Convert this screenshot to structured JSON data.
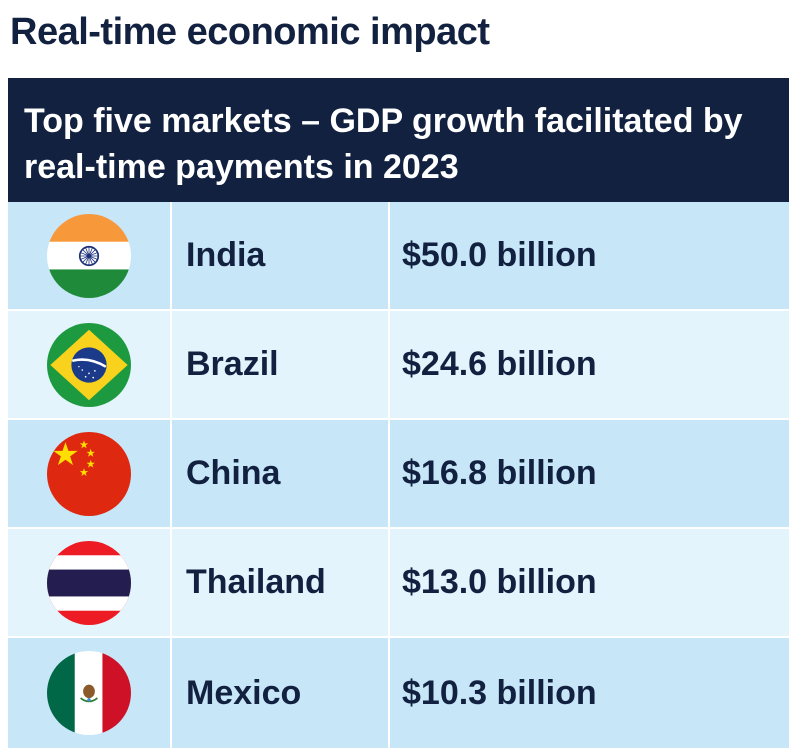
{
  "page_title": "Real-time economic impact",
  "chart_data": {
    "type": "table",
    "title": "Top five markets – GDP growth facilitated by real-time payments in 2023",
    "unit": "billion USD",
    "rows": [
      {
        "country": "India",
        "value": 50.0,
        "value_label": "$50.0 billion",
        "flag_icon": "india-flag-icon"
      },
      {
        "country": "Brazil",
        "value": 24.6,
        "value_label": "$24.6 billion",
        "flag_icon": "brazil-flag-icon"
      },
      {
        "country": "China",
        "value": 16.8,
        "value_label": "$16.8 billion",
        "flag_icon": "china-flag-icon"
      },
      {
        "country": "Thailand",
        "value": 13.0,
        "value_label": "$13.0 billion",
        "flag_icon": "thailand-flag-icon"
      },
      {
        "country": "Mexico",
        "value": 10.3,
        "value_label": "$10.3 billion",
        "flag_icon": "mexico-flag-icon"
      }
    ]
  },
  "colors": {
    "header_bg": "#12213f",
    "row_dark": "#c7e6f8",
    "row_light": "#e3f4fc",
    "text": "#12213f"
  }
}
